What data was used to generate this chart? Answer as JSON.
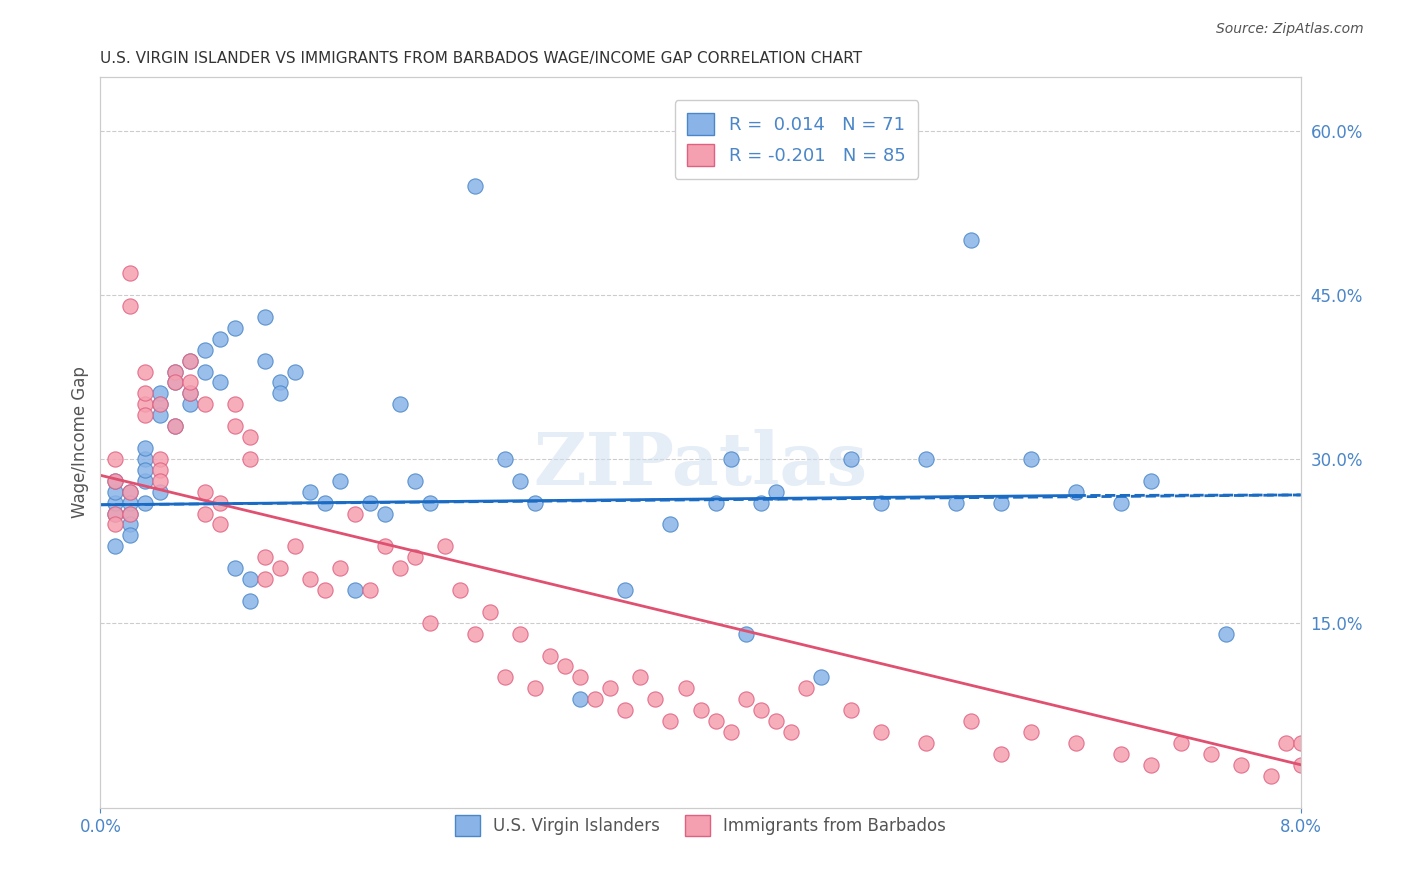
{
  "title": "U.S. VIRGIN ISLANDER VS IMMIGRANTS FROM BARBADOS WAGE/INCOME GAP CORRELATION CHART",
  "source": "Source: ZipAtlas.com",
  "xlabel": "",
  "ylabel": "Wage/Income Gap",
  "right_yticks": [
    "60.0%",
    "45.0%",
    "30.0%",
    "15.0%"
  ],
  "right_ytick_vals": [
    0.6,
    0.45,
    0.3,
    0.15
  ],
  "xlim": [
    0.0,
    0.08
  ],
  "ylim": [
    -0.02,
    0.65
  ],
  "xtick_labels": [
    "0.0%",
    "8.0%"
  ],
  "xtick_vals": [
    0.0,
    0.08
  ],
  "series1": {
    "name": "U.S. Virgin Islanders",
    "color": "#8ab4e8",
    "edge_color": "#4a86c8",
    "R": 0.014,
    "N": 71,
    "x": [
      0.001,
      0.001,
      0.001,
      0.001,
      0.001,
      0.002,
      0.002,
      0.002,
      0.002,
      0.002,
      0.003,
      0.003,
      0.003,
      0.003,
      0.003,
      0.004,
      0.004,
      0.004,
      0.004,
      0.005,
      0.005,
      0.005,
      0.006,
      0.006,
      0.006,
      0.007,
      0.007,
      0.008,
      0.008,
      0.009,
      0.009,
      0.01,
      0.01,
      0.011,
      0.011,
      0.012,
      0.012,
      0.013,
      0.014,
      0.015,
      0.016,
      0.017,
      0.018,
      0.019,
      0.02,
      0.021,
      0.022,
      0.025,
      0.027,
      0.028,
      0.029,
      0.032,
      0.035,
      0.038,
      0.041,
      0.042,
      0.043,
      0.044,
      0.045,
      0.048,
      0.05,
      0.052,
      0.055,
      0.057,
      0.058,
      0.06,
      0.062,
      0.065,
      0.068,
      0.07,
      0.075
    ],
    "y": [
      0.25,
      0.26,
      0.27,
      0.28,
      0.22,
      0.25,
      0.27,
      0.26,
      0.24,
      0.23,
      0.28,
      0.3,
      0.29,
      0.31,
      0.26,
      0.35,
      0.36,
      0.34,
      0.27,
      0.38,
      0.37,
      0.33,
      0.39,
      0.35,
      0.36,
      0.4,
      0.38,
      0.41,
      0.37,
      0.42,
      0.2,
      0.19,
      0.17,
      0.43,
      0.39,
      0.37,
      0.36,
      0.38,
      0.27,
      0.26,
      0.28,
      0.18,
      0.26,
      0.25,
      0.35,
      0.28,
      0.26,
      0.55,
      0.3,
      0.28,
      0.26,
      0.08,
      0.18,
      0.24,
      0.26,
      0.3,
      0.14,
      0.26,
      0.27,
      0.1,
      0.3,
      0.26,
      0.3,
      0.26,
      0.5,
      0.26,
      0.3,
      0.27,
      0.26,
      0.28,
      0.14
    ]
  },
  "series2": {
    "name": "Immigrants from Barbados",
    "color": "#f5a0b0",
    "edge_color": "#e06080",
    "R": -0.201,
    "N": 85,
    "x": [
      0.001,
      0.001,
      0.001,
      0.001,
      0.002,
      0.002,
      0.002,
      0.002,
      0.003,
      0.003,
      0.003,
      0.003,
      0.004,
      0.004,
      0.004,
      0.004,
      0.005,
      0.005,
      0.005,
      0.006,
      0.006,
      0.006,
      0.007,
      0.007,
      0.007,
      0.008,
      0.008,
      0.009,
      0.009,
      0.01,
      0.01,
      0.011,
      0.011,
      0.012,
      0.013,
      0.014,
      0.015,
      0.016,
      0.017,
      0.018,
      0.019,
      0.02,
      0.021,
      0.022,
      0.023,
      0.024,
      0.025,
      0.026,
      0.027,
      0.028,
      0.029,
      0.03,
      0.031,
      0.032,
      0.033,
      0.034,
      0.035,
      0.036,
      0.037,
      0.038,
      0.039,
      0.04,
      0.041,
      0.042,
      0.043,
      0.044,
      0.045,
      0.046,
      0.047,
      0.05,
      0.052,
      0.055,
      0.058,
      0.06,
      0.062,
      0.065,
      0.068,
      0.07,
      0.072,
      0.074,
      0.076,
      0.078,
      0.079,
      0.08,
      0.08
    ],
    "y": [
      0.3,
      0.28,
      0.25,
      0.24,
      0.47,
      0.44,
      0.27,
      0.25,
      0.35,
      0.36,
      0.34,
      0.38,
      0.35,
      0.3,
      0.29,
      0.28,
      0.38,
      0.37,
      0.33,
      0.39,
      0.36,
      0.37,
      0.35,
      0.27,
      0.25,
      0.26,
      0.24,
      0.35,
      0.33,
      0.32,
      0.3,
      0.21,
      0.19,
      0.2,
      0.22,
      0.19,
      0.18,
      0.2,
      0.25,
      0.18,
      0.22,
      0.2,
      0.21,
      0.15,
      0.22,
      0.18,
      0.14,
      0.16,
      0.1,
      0.14,
      0.09,
      0.12,
      0.11,
      0.1,
      0.08,
      0.09,
      0.07,
      0.1,
      0.08,
      0.06,
      0.09,
      0.07,
      0.06,
      0.05,
      0.08,
      0.07,
      0.06,
      0.05,
      0.09,
      0.07,
      0.05,
      0.04,
      0.06,
      0.03,
      0.05,
      0.04,
      0.03,
      0.02,
      0.04,
      0.03,
      0.02,
      0.01,
      0.04,
      0.02,
      0.04
    ]
  },
  "trend1": {
    "x": [
      0.0,
      0.08
    ],
    "y": [
      0.258,
      0.267
    ],
    "color": "#1a6bc4",
    "linestyle": "solid"
  },
  "trend2": {
    "x": [
      0.0,
      0.08
    ],
    "y": [
      0.285,
      0.02
    ],
    "color": "#e05070",
    "linestyle": "solid"
  },
  "watermark": "ZIPatlas",
  "background_color": "#ffffff",
  "grid_color": "#cccccc",
  "title_color": "#333333",
  "axis_color": "#4a86c8",
  "legend_R1": "R =  0.014",
  "legend_N1": "N = 71",
  "legend_R2": "R = -0.201",
  "legend_N2": "N = 85"
}
